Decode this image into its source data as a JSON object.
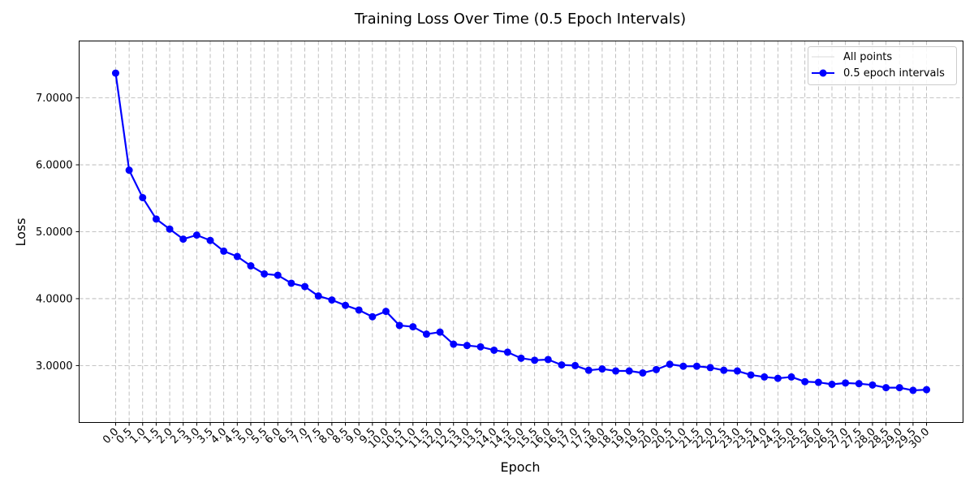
{
  "chart_data": {
    "type": "line",
    "title": "Training Loss Over Time (0.5 Epoch Intervals)",
    "xlabel": "Epoch",
    "ylabel": "Loss",
    "xlim": [
      -1.35,
      31.35
    ],
    "ylim": [
      2.15,
      7.85
    ],
    "x_ticks": [
      "0.0",
      "0.5",
      "1.0",
      "1.5",
      "2.0",
      "2.5",
      "3.0",
      "3.5",
      "4.0",
      "4.5",
      "5.0",
      "5.5",
      "6.0",
      "6.5",
      "7.0",
      "7.5",
      "8.0",
      "8.5",
      "9.0",
      "9.5",
      "10.0",
      "10.5",
      "11.0",
      "11.5",
      "12.0",
      "12.5",
      "13.0",
      "13.5",
      "14.0",
      "14.5",
      "15.0",
      "15.5",
      "16.0",
      "16.5",
      "17.0",
      "17.5",
      "18.0",
      "18.5",
      "19.0",
      "19.5",
      "20.0",
      "20.5",
      "21.0",
      "21.5",
      "22.0",
      "22.5",
      "23.0",
      "23.5",
      "24.0",
      "24.5",
      "25.0",
      "25.5",
      "26.0",
      "26.5",
      "27.0",
      "27.5",
      "28.0",
      "28.5",
      "29.0",
      "29.5",
      "30.0"
    ],
    "y_ticks": [
      "3.0000",
      "4.0000",
      "5.0000",
      "6.0000",
      "7.0000"
    ],
    "grid": true,
    "legend_position": "top-right",
    "series": [
      {
        "name": "All points",
        "color": "#d8d8d8",
        "values": []
      },
      {
        "name": "0.5 epoch intervals",
        "color": "#0000ff",
        "x": [
          0.0,
          0.5,
          1.0,
          1.5,
          2.0,
          2.5,
          3.0,
          3.5,
          4.0,
          4.5,
          5.0,
          5.5,
          6.0,
          6.5,
          7.0,
          7.5,
          8.0,
          8.5,
          9.0,
          9.5,
          10.0,
          10.5,
          11.0,
          11.5,
          12.0,
          12.5,
          13.0,
          13.5,
          14.0,
          14.5,
          15.0,
          15.5,
          16.0,
          16.5,
          17.0,
          17.5,
          18.0,
          18.5,
          19.0,
          19.5,
          20.0,
          20.5,
          21.0,
          21.5,
          22.0,
          22.5,
          23.0,
          23.5,
          24.0,
          24.5,
          25.0,
          25.5,
          26.0,
          26.5,
          27.0,
          27.5,
          28.0,
          28.5,
          29.0,
          29.5,
          30.0
        ],
        "values": [
          7.37,
          5.92,
          5.51,
          5.19,
          5.04,
          4.89,
          4.95,
          4.87,
          4.71,
          4.63,
          4.49,
          4.37,
          4.35,
          4.23,
          4.18,
          4.04,
          3.98,
          3.9,
          3.83,
          3.73,
          3.81,
          3.6,
          3.58,
          3.47,
          3.5,
          3.32,
          3.3,
          3.28,
          3.23,
          3.2,
          3.11,
          3.08,
          3.09,
          3.01,
          3.0,
          2.93,
          2.95,
          2.92,
          2.92,
          2.89,
          2.94,
          3.02,
          2.99,
          2.99,
          2.97,
          2.93,
          2.92,
          2.86,
          2.83,
          2.81,
          2.83,
          2.76,
          2.75,
          2.72,
          2.74,
          2.73,
          2.71,
          2.67,
          2.67,
          2.63,
          2.64
        ]
      }
    ]
  }
}
